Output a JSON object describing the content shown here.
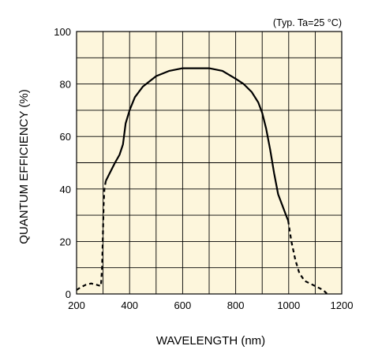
{
  "chart_data": {
    "type": "line",
    "annotation": "(Typ. Ta=25 °C)",
    "xlabel": "WAVELENGTH (nm)",
    "ylabel": "QUANTUM EFFICIENCY (%)",
    "xlim": [
      200,
      1200
    ],
    "ylim": [
      0,
      100
    ],
    "x_ticks": [
      200,
      400,
      600,
      800,
      1000,
      1200
    ],
    "y_ticks": [
      0,
      20,
      40,
      60,
      80,
      100
    ],
    "grid": true,
    "background_color": "#fdf6dc",
    "line_color": "#000000",
    "series": [
      {
        "style": "dashed",
        "x": [
          200,
          215,
          235,
          255,
          275,
          292,
          296,
          300,
          302,
          305,
          310
        ],
        "y": [
          1.5,
          2.5,
          3.5,
          4.0,
          3.5,
          3.0,
          10,
          25,
          34,
          40,
          43
        ]
      },
      {
        "style": "solid",
        "x": [
          310,
          325,
          345,
          362,
          375,
          385,
          400,
          420,
          450,
          500,
          550,
          600,
          650,
          700,
          750,
          800,
          830,
          860,
          885,
          900,
          915,
          930,
          945,
          960,
          975,
          990,
          998
        ],
        "y": [
          43,
          46,
          50,
          53,
          57,
          65,
          70,
          75,
          79,
          83,
          85,
          86,
          86,
          86,
          85,
          82,
          80,
          77,
          73,
          69,
          63,
          55,
          46,
          38,
          34,
          30,
          28
        ]
      },
      {
        "style": "dashed",
        "x": [
          998,
          1010,
          1025,
          1040,
          1060,
          1080,
          1100,
          1120,
          1135,
          1145
        ],
        "y": [
          28,
          20,
          13,
          8,
          5,
          4,
          3,
          2,
          1,
          0
        ]
      }
    ]
  }
}
